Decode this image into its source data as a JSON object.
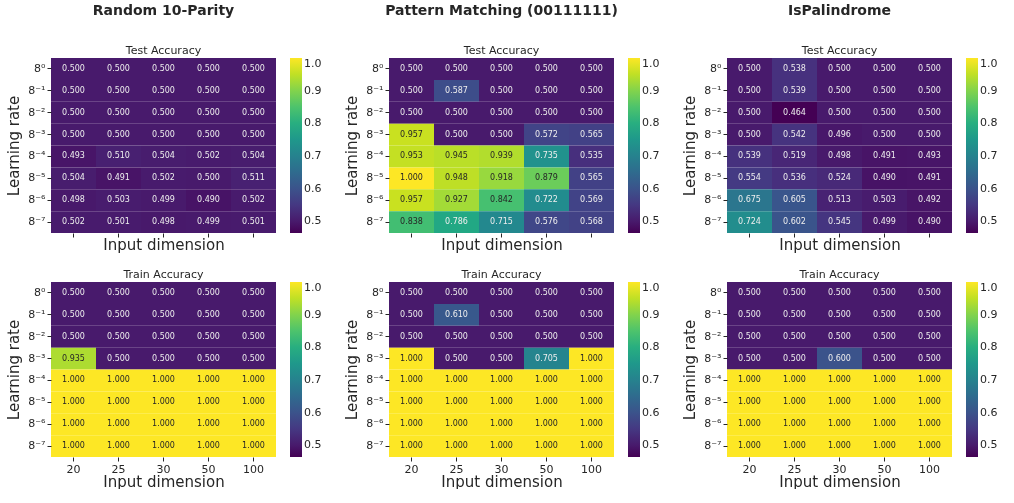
{
  "chart_data": [
    {
      "type": "heatmap",
      "title": "Random 10-Parity",
      "subtitle": "Test Accuracy",
      "xlabel": "Input dimension",
      "ylabel": "Learning rate",
      "tick_labels": "y",
      "categories": [
        "20",
        "25",
        "30",
        "50",
        "100"
      ],
      "y_categories": [
        "8⁰",
        "8⁻¹",
        "8⁻²",
        "8⁻³",
        "8⁻⁴",
        "8⁻⁵",
        "8⁻⁶",
        "8⁻⁷"
      ],
      "clim": [
        0.464,
        1.0
      ],
      "cticks": [
        {
          "value": 0.5,
          "label": "0.5"
        },
        {
          "value": 0.6,
          "label": "0.6"
        },
        {
          "value": 0.7,
          "label": "0.7"
        },
        {
          "value": 0.8,
          "label": "0.8"
        },
        {
          "value": 0.9,
          "label": "0.9"
        },
        {
          "value": 1,
          "label": "1.0"
        }
      ],
      "cells": [
        [
          0.5,
          0.5,
          0.5,
          0.5,
          0.5
        ],
        [
          0.5,
          0.5,
          0.5,
          0.5,
          0.5
        ],
        [
          0.5,
          0.5,
          0.5,
          0.5,
          0.5
        ],
        [
          0.5,
          0.5,
          0.5,
          0.5,
          0.5
        ],
        [
          0.493,
          0.51,
          0.504,
          0.502,
          0.504
        ],
        [
          0.504,
          0.491,
          0.502,
          0.5,
          0.511
        ],
        [
          0.498,
          0.503,
          0.499,
          0.49,
          0.502
        ],
        [
          0.502,
          0.501,
          0.498,
          0.499,
          0.501
        ]
      ],
      "cell_labels": [
        [
          "0.500",
          "0.500",
          "0.500",
          "0.500",
          "0.500"
        ],
        [
          "0.500",
          "0.500",
          "0.500",
          "0.500",
          "0.500"
        ],
        [
          "0.500",
          "0.500",
          "0.500",
          "0.500",
          "0.500"
        ],
        [
          "0.500",
          "0.500",
          "0.500",
          "0.500",
          "0.500"
        ],
        [
          "0.493",
          "0.510",
          "0.504",
          "0.502",
          "0.504"
        ],
        [
          "0.504",
          "0.491",
          "0.502",
          "0.500",
          "0.511"
        ],
        [
          "0.498",
          "0.503",
          "0.499",
          "0.490",
          "0.502"
        ],
        [
          "0.502",
          "0.501",
          "0.498",
          "0.499",
          "0.501"
        ]
      ]
    },
    {
      "type": "heatmap",
      "title": "Pattern Matching (00111111)",
      "subtitle": "Test Accuracy",
      "xlabel": "Input dimension",
      "ylabel": "Learning rate",
      "tick_labels": "y",
      "categories": [
        "20",
        "25",
        "30",
        "50",
        "100"
      ],
      "y_categories": [
        "8⁰",
        "8⁻¹",
        "8⁻²",
        "8⁻³",
        "8⁻⁴",
        "8⁻⁵",
        "8⁻⁶",
        "8⁻⁷"
      ],
      "clim": [
        0.464,
        1.0
      ],
      "cticks": [
        {
          "value": 0.5,
          "label": "0.5"
        },
        {
          "value": 0.6,
          "label": "0.6"
        },
        {
          "value": 0.7,
          "label": "0.7"
        },
        {
          "value": 0.8,
          "label": "0.8"
        },
        {
          "value": 0.9,
          "label": "0.9"
        },
        {
          "value": 1,
          "label": "1.0"
        }
      ],
      "cells": [
        [
          0.5,
          0.5,
          0.5,
          0.5,
          0.5
        ],
        [
          0.5,
          0.587,
          0.5,
          0.5,
          0.5
        ],
        [
          0.5,
          0.5,
          0.5,
          0.5,
          0.5
        ],
        [
          0.957,
          0.5,
          0.5,
          0.572,
          0.565
        ],
        [
          0.953,
          0.945,
          0.939,
          0.735,
          0.535
        ],
        [
          1.0,
          0.948,
          0.918,
          0.879,
          0.565
        ],
        [
          0.957,
          0.927,
          0.842,
          0.722,
          0.569
        ],
        [
          0.838,
          0.786,
          0.715,
          0.576,
          0.568
        ]
      ],
      "cell_labels": [
        [
          "0.500",
          "0.500",
          "0.500",
          "0.500",
          "0.500"
        ],
        [
          "0.500",
          "0.587",
          "0.500",
          "0.500",
          "0.500"
        ],
        [
          "0.500",
          "0.500",
          "0.500",
          "0.500",
          "0.500"
        ],
        [
          "0.957",
          "0.500",
          "0.500",
          "0.572",
          "0.565"
        ],
        [
          "0.953",
          "0.945",
          "0.939",
          "0.735",
          "0.535"
        ],
        [
          "1.000",
          "0.948",
          "0.918",
          "0.879",
          "0.565"
        ],
        [
          "0.957",
          "0.927",
          "0.842",
          "0.722",
          "0.569"
        ],
        [
          "0.838",
          "0.786",
          "0.715",
          "0.576",
          "0.568"
        ]
      ]
    },
    {
      "type": "heatmap",
      "title": "IsPalindrome",
      "subtitle": "Test Accuracy",
      "xlabel": "Input dimension",
      "ylabel": "Learning rate",
      "tick_labels": "y",
      "categories": [
        "20",
        "25",
        "30",
        "50",
        "100"
      ],
      "y_categories": [
        "8⁰",
        "8⁻¹",
        "8⁻²",
        "8⁻³",
        "8⁻⁴",
        "8⁻⁵",
        "8⁻⁶",
        "8⁻⁷"
      ],
      "clim": [
        0.464,
        1.0
      ],
      "cticks": [
        {
          "value": 0.5,
          "label": "0.5"
        },
        {
          "value": 0.6,
          "label": "0.6"
        },
        {
          "value": 0.7,
          "label": "0.7"
        },
        {
          "value": 0.8,
          "label": "0.8"
        },
        {
          "value": 0.9,
          "label": "0.9"
        },
        {
          "value": 1,
          "label": "1.0"
        }
      ],
      "cells": [
        [
          0.5,
          0.538,
          0.5,
          0.5,
          0.5
        ],
        [
          0.5,
          0.539,
          0.5,
          0.5,
          0.5
        ],
        [
          0.5,
          0.464,
          0.5,
          0.5,
          0.5
        ],
        [
          0.5,
          0.542,
          0.496,
          0.5,
          0.5
        ],
        [
          0.539,
          0.519,
          0.498,
          0.491,
          0.493
        ],
        [
          0.554,
          0.536,
          0.524,
          0.49,
          0.491
        ],
        [
          0.675,
          0.605,
          0.513,
          0.503,
          0.492
        ],
        [
          0.724,
          0.602,
          0.545,
          0.499,
          0.49
        ]
      ],
      "cell_labels": [
        [
          "0.500",
          "0.538",
          "0.500",
          "0.500",
          "0.500"
        ],
        [
          "0.500",
          "0.539",
          "0.500",
          "0.500",
          "0.500"
        ],
        [
          "0.500",
          "0.464",
          "0.500",
          "0.500",
          "0.500"
        ],
        [
          "0.500",
          "0.542",
          "0.496",
          "0.500",
          "0.500"
        ],
        [
          "0.539",
          "0.519",
          "0.498",
          "0.491",
          "0.493"
        ],
        [
          "0.554",
          "0.536",
          "0.524",
          "0.490",
          "0.491"
        ],
        [
          "0.675",
          "0.605",
          "0.513",
          "0.503",
          "0.492"
        ],
        [
          "0.724",
          "0.602",
          "0.545",
          "0.499",
          "0.490"
        ]
      ]
    },
    {
      "type": "heatmap",
      "title": "Train Accuracy",
      "xlabel": "Input dimension",
      "ylabel": "Learning rate",
      "categories": [
        "20",
        "25",
        "30",
        "50",
        "100"
      ],
      "y_categories": [
        "8⁰",
        "8⁻¹",
        "8⁻²",
        "8⁻³",
        "8⁻⁴",
        "8⁻⁵",
        "8⁻⁶",
        "8⁻⁷"
      ],
      "clim": [
        0.464,
        1.0
      ],
      "cticks": [
        {
          "value": 0.5,
          "label": "0.5"
        },
        {
          "value": 0.6,
          "label": "0.6"
        },
        {
          "value": 0.7,
          "label": "0.7"
        },
        {
          "value": 0.8,
          "label": "0.8"
        },
        {
          "value": 0.9,
          "label": "0.9"
        },
        {
          "value": 1,
          "label": "1.0"
        }
      ],
      "cells": [
        [
          0.5,
          0.5,
          0.5,
          0.5,
          0.5
        ],
        [
          0.5,
          0.5,
          0.5,
          0.5,
          0.5
        ],
        [
          0.5,
          0.5,
          0.5,
          0.5,
          0.5
        ],
        [
          0.935,
          0.5,
          0.5,
          0.5,
          0.5
        ],
        [
          1.0,
          1.0,
          1.0,
          1.0,
          1.0
        ],
        [
          1.0,
          1.0,
          1.0,
          1.0,
          1.0
        ],
        [
          1.0,
          1.0,
          1.0,
          1.0,
          1.0
        ],
        [
          1.0,
          1.0,
          1.0,
          1.0,
          1.0
        ]
      ],
      "cell_labels": [
        [
          "0.500",
          "0.500",
          "0.500",
          "0.500",
          "0.500"
        ],
        [
          "0.500",
          "0.500",
          "0.500",
          "0.500",
          "0.500"
        ],
        [
          "0.500",
          "0.500",
          "0.500",
          "0.500",
          "0.500"
        ],
        [
          "0.935",
          "0.500",
          "0.500",
          "0.500",
          "0.500"
        ],
        [
          "1.000",
          "1.000",
          "1.000",
          "1.000",
          "1.000"
        ],
        [
          "1.000",
          "1.000",
          "1.000",
          "1.000",
          "1.000"
        ],
        [
          "1.000",
          "1.000",
          "1.000",
          "1.000",
          "1.000"
        ],
        [
          "1.000",
          "1.000",
          "1.000",
          "1.000",
          "1.000"
        ]
      ]
    },
    {
      "type": "heatmap",
      "title": "Train Accuracy",
      "xlabel": "Input dimension",
      "ylabel": "Learning rate",
      "categories": [
        "20",
        "25",
        "30",
        "50",
        "100"
      ],
      "y_categories": [
        "8⁰",
        "8⁻¹",
        "8⁻²",
        "8⁻³",
        "8⁻⁴",
        "8⁻⁵",
        "8⁻⁶",
        "8⁻⁷"
      ],
      "clim": [
        0.464,
        1.0
      ],
      "cticks": [
        {
          "value": 0.5,
          "label": "0.5"
        },
        {
          "value": 0.6,
          "label": "0.6"
        },
        {
          "value": 0.7,
          "label": "0.7"
        },
        {
          "value": 0.8,
          "label": "0.8"
        },
        {
          "value": 0.9,
          "label": "0.9"
        },
        {
          "value": 1,
          "label": "1.0"
        }
      ],
      "cells": [
        [
          0.5,
          0.5,
          0.5,
          0.5,
          0.5
        ],
        [
          0.5,
          0.61,
          0.5,
          0.5,
          0.5
        ],
        [
          0.5,
          0.5,
          0.5,
          0.5,
          0.5
        ],
        [
          1.0,
          0.5,
          0.5,
          0.705,
          1.0
        ],
        [
          1.0,
          1.0,
          1.0,
          1.0,
          1.0
        ],
        [
          1.0,
          1.0,
          1.0,
          1.0,
          1.0
        ],
        [
          1.0,
          1.0,
          1.0,
          1.0,
          1.0
        ],
        [
          1.0,
          1.0,
          1.0,
          1.0,
          1.0
        ]
      ],
      "cell_labels": [
        [
          "0.500",
          "0.500",
          "0.500",
          "0.500",
          "0.500"
        ],
        [
          "0.500",
          "0.610",
          "0.500",
          "0.500",
          "0.500"
        ],
        [
          "0.500",
          "0.500",
          "0.500",
          "0.500",
          "0.500"
        ],
        [
          "1.000",
          "0.500",
          "0.500",
          "0.705",
          "1.000"
        ],
        [
          "1.000",
          "1.000",
          "1.000",
          "1.000",
          "1.000"
        ],
        [
          "1.000",
          "1.000",
          "1.000",
          "1.000",
          "1.000"
        ],
        [
          "1.000",
          "1.000",
          "1.000",
          "1.000",
          "1.000"
        ],
        [
          "1.000",
          "1.000",
          "1.000",
          "1.000",
          "1.000"
        ]
      ]
    },
    {
      "type": "heatmap",
      "title": "Train Accuracy",
      "xlabel": "Input dimension",
      "ylabel": "Learning rate",
      "categories": [
        "20",
        "25",
        "30",
        "50",
        "100"
      ],
      "y_categories": [
        "8⁰",
        "8⁻¹",
        "8⁻²",
        "8⁻³",
        "8⁻⁴",
        "8⁻⁵",
        "8⁻⁶",
        "8⁻⁷"
      ],
      "clim": [
        0.464,
        1.0
      ],
      "cticks": [
        {
          "value": 0.5,
          "label": "0.5"
        },
        {
          "value": 0.6,
          "label": "0.6"
        },
        {
          "value": 0.7,
          "label": "0.7"
        },
        {
          "value": 0.8,
          "label": "0.8"
        },
        {
          "value": 0.9,
          "label": "0.9"
        },
        {
          "value": 1,
          "label": "1.0"
        }
      ],
      "cells": [
        [
          0.5,
          0.5,
          0.5,
          0.5,
          0.5
        ],
        [
          0.5,
          0.5,
          0.5,
          0.5,
          0.5
        ],
        [
          0.5,
          0.5,
          0.5,
          0.5,
          0.5
        ],
        [
          0.5,
          0.5,
          0.6,
          0.5,
          0.5
        ],
        [
          1.0,
          1.0,
          1.0,
          1.0,
          1.0
        ],
        [
          1.0,
          1.0,
          1.0,
          1.0,
          1.0
        ],
        [
          1.0,
          1.0,
          1.0,
          1.0,
          1.0
        ],
        [
          1.0,
          1.0,
          1.0,
          1.0,
          1.0
        ]
      ],
      "cell_labels": [
        [
          "0.500",
          "0.500",
          "0.500",
          "0.500",
          "0.500"
        ],
        [
          "0.500",
          "0.500",
          "0.500",
          "0.500",
          "0.500"
        ],
        [
          "0.500",
          "0.500",
          "0.500",
          "0.500",
          "0.500"
        ],
        [
          "0.500",
          "0.500",
          "0.600",
          "0.500",
          "0.500"
        ],
        [
          "1.000",
          "1.000",
          "1.000",
          "1.000",
          "1.000"
        ],
        [
          "1.000",
          "1.000",
          "1.000",
          "1.000",
          "1.000"
        ],
        [
          "1.000",
          "1.000",
          "1.000",
          "1.000",
          "1.000"
        ],
        [
          "1.000",
          "1.000",
          "1.000",
          "1.000",
          "1.000"
        ]
      ]
    }
  ]
}
